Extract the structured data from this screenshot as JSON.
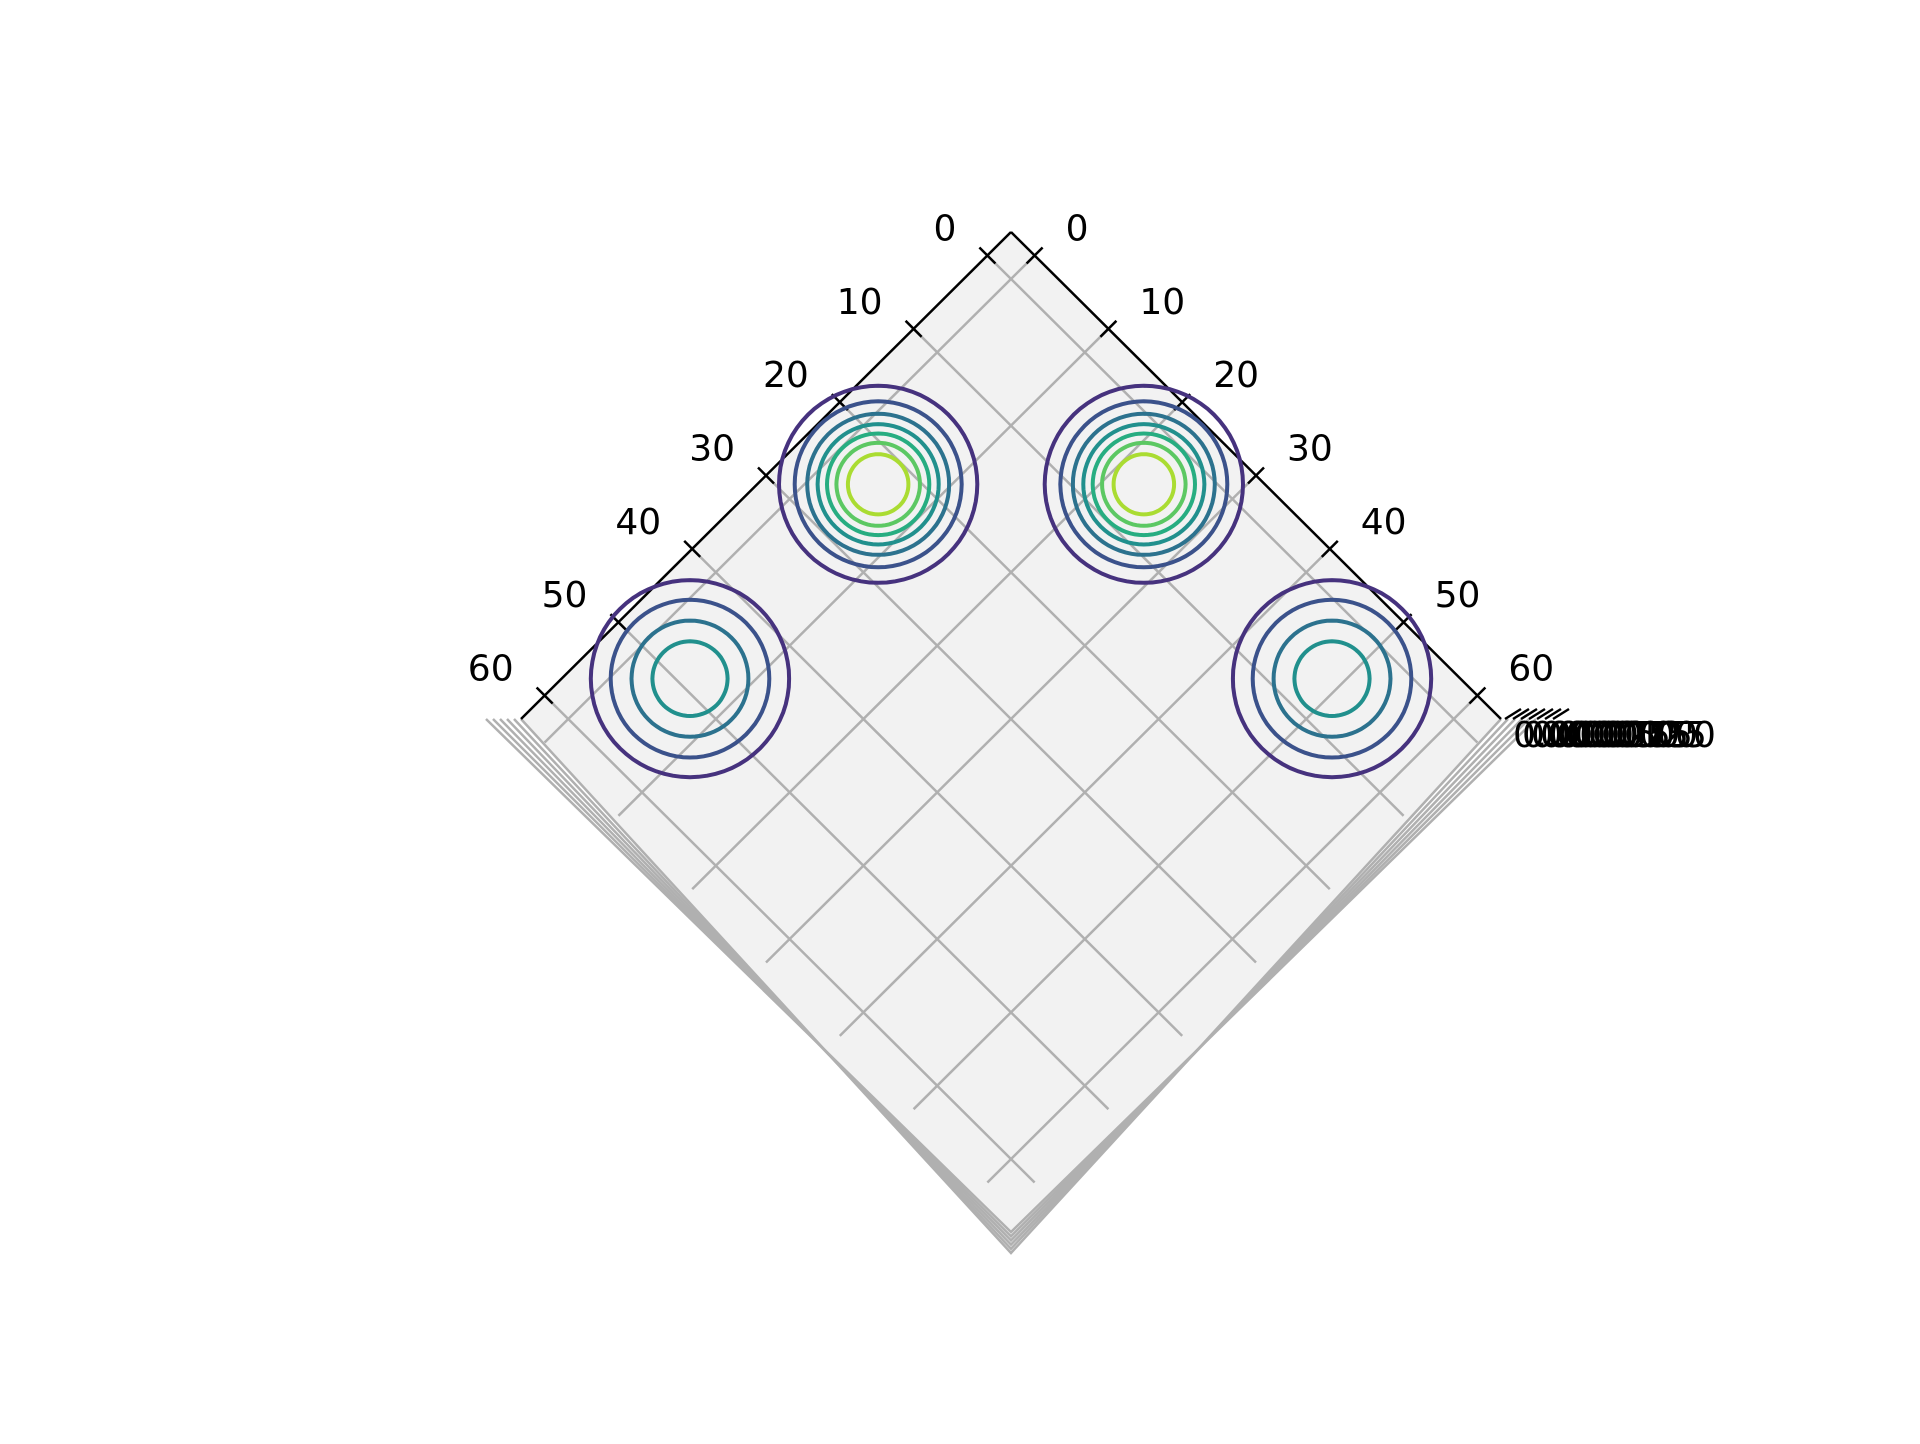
{
  "chart_data": {
    "type": "contour3d",
    "xlim": [
      -3.2,
      63.2
    ],
    "ylim": [
      -3.2,
      63.2
    ],
    "xticks": [
      0,
      10,
      20,
      30,
      40,
      50,
      60
    ],
    "yticks": [
      0,
      10,
      20,
      30,
      40,
      50,
      60
    ],
    "zticks": [
      {
        "value": 0,
        "label": "0.00000"
      },
      {
        "value": 0.00025,
        "label": "0.00025"
      },
      {
        "value": 0.0005,
        "label": "0.00050"
      },
      {
        "value": 0.00075,
        "label": "0.00075"
      },
      {
        "value": 0.001,
        "label": "0.00100"
      },
      {
        "value": 0.00125,
        "label": "0.00125"
      },
      {
        "value": 0.0015,
        "label": "0.00150"
      }
    ],
    "grid": true,
    "levels": [
      0.0002,
      0.0004,
      0.0006,
      0.0008,
      0.001,
      0.0012,
      0.0014
    ],
    "level_colors": [
      "#46327e",
      "#3b528b",
      "#2c728e",
      "#21908d",
      "#27ad81",
      "#5cc863",
      "#aadc32"
    ],
    "peaks": [
      {
        "x": 23,
        "y": 5,
        "radii": [
          9.5,
          8,
          6.8,
          5.8,
          4.9,
          4,
          2.9
        ]
      },
      {
        "x": 5,
        "y": 23,
        "radii": [
          9.5,
          8,
          6.8,
          5.8,
          4.9,
          4,
          2.9
        ]
      },
      {
        "x": 49,
        "y": 5.5,
        "radii": [
          9.5,
          7.6,
          5.6,
          3.6
        ]
      },
      {
        "x": 5.5,
        "y": 49,
        "radii": [
          9.5,
          7.6,
          5.6,
          3.6
        ]
      }
    ]
  }
}
